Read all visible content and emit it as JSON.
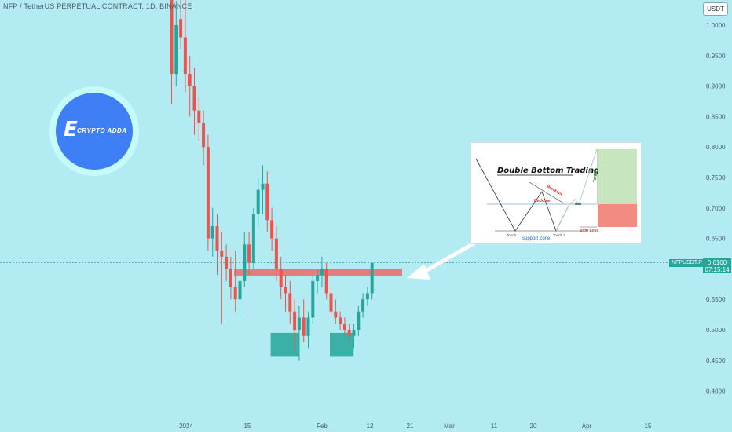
{
  "header": {
    "title": "NFP / TetherUS PERPETUAL CONTRACT, 1D, BINANCE",
    "currency": "USDT"
  },
  "price_tag": {
    "symbol": "NFPUSDT.P",
    "price": "0.6100",
    "countdown": "07:15:14"
  },
  "logo": {
    "brand_text": "CRYPTO ADDA"
  },
  "colors": {
    "background": "#b2ebf2",
    "up": "#26a69a",
    "down": "#ef5350",
    "resistance_zone": "#e57373",
    "support_zone": "#26a69a"
  },
  "chart_data": {
    "type": "candlestick",
    "y_axis_ticks": [
      "1.0000",
      "0.9500",
      "0.9000",
      "0.8500",
      "0.8000",
      "0.7500",
      "0.7000",
      "0.6500",
      "0.6000",
      "0.5500",
      "0.5000",
      "0.4500",
      "0.4000"
    ],
    "x_axis_ticks": [
      "2024",
      "15",
      "Feb",
      "12",
      "21",
      "Mar",
      "11",
      "20",
      "Apr",
      "15"
    ],
    "ylim": [
      0.37,
      1.05
    ],
    "current_price": 0.61,
    "candles": [
      [
        1.06,
        1.08,
        0.87,
        0.92
      ],
      [
        0.92,
        1.04,
        0.9,
        1.0
      ],
      [
        1.01,
        1.05,
        0.96,
        0.98
      ],
      [
        0.98,
        1.06,
        0.89,
        0.92
      ],
      [
        0.92,
        0.95,
        0.85,
        0.9
      ],
      [
        0.9,
        0.93,
        0.82,
        0.86
      ],
      [
        0.86,
        0.88,
        0.81,
        0.84
      ],
      [
        0.84,
        0.86,
        0.77,
        0.8
      ],
      [
        0.8,
        0.82,
        0.63,
        0.65
      ],
      [
        0.65,
        0.7,
        0.62,
        0.67
      ],
      [
        0.67,
        0.69,
        0.59,
        0.63
      ],
      [
        0.63,
        0.66,
        0.51,
        0.62
      ],
      [
        0.62,
        0.64,
        0.58,
        0.6
      ],
      [
        0.6,
        0.62,
        0.55,
        0.57
      ],
      [
        0.57,
        0.63,
        0.53,
        0.55
      ],
      [
        0.55,
        0.59,
        0.52,
        0.58
      ],
      [
        0.58,
        0.66,
        0.57,
        0.64
      ],
      [
        0.64,
        0.66,
        0.59,
        0.61
      ],
      [
        0.61,
        0.7,
        0.6,
        0.69
      ],
      [
        0.69,
        0.75,
        0.67,
        0.73
      ],
      [
        0.73,
        0.77,
        0.69,
        0.74
      ],
      [
        0.74,
        0.76,
        0.66,
        0.68
      ],
      [
        0.68,
        0.7,
        0.63,
        0.65
      ],
      [
        0.65,
        0.67,
        0.58,
        0.6
      ],
      [
        0.6,
        0.62,
        0.55,
        0.57
      ],
      [
        0.57,
        0.59,
        0.53,
        0.56
      ],
      [
        0.56,
        0.58,
        0.51,
        0.53
      ],
      [
        0.53,
        0.55,
        0.47,
        0.5
      ],
      [
        0.5,
        0.54,
        0.45,
        0.52
      ],
      [
        0.52,
        0.55,
        0.48,
        0.49
      ],
      [
        0.49,
        0.53,
        0.47,
        0.52
      ],
      [
        0.52,
        0.59,
        0.51,
        0.58
      ],
      [
        0.58,
        0.6,
        0.56,
        0.59
      ],
      [
        0.59,
        0.62,
        0.57,
        0.6
      ],
      [
        0.6,
        0.61,
        0.55,
        0.56
      ],
      [
        0.56,
        0.57,
        0.52,
        0.53
      ],
      [
        0.53,
        0.55,
        0.51,
        0.52
      ],
      [
        0.52,
        0.53,
        0.5,
        0.51
      ],
      [
        0.51,
        0.52,
        0.49,
        0.5
      ],
      [
        0.5,
        0.51,
        0.48,
        0.49
      ],
      [
        0.49,
        0.51,
        0.47,
        0.5
      ],
      [
        0.5,
        0.54,
        0.49,
        0.53
      ],
      [
        0.53,
        0.56,
        0.52,
        0.55
      ],
      [
        0.55,
        0.57,
        0.54,
        0.56
      ],
      [
        0.56,
        0.61,
        0.55,
        0.61
      ]
    ],
    "resistance_zone": {
      "from": 0.595,
      "to": 0.607
    },
    "support_zones": [
      {
        "from_candle": 22,
        "to_candle": 27,
        "low": 0.457,
        "high": 0.495
      },
      {
        "from_candle": 35,
        "to_candle": 39,
        "low": 0.457,
        "high": 0.495
      }
    ]
  },
  "inset": {
    "title": "Double Bottom Trading",
    "neckline": "Neckline",
    "breakout": "Breakout",
    "target": "Target",
    "touch1": "Touch 1",
    "touch2": "Touch 2",
    "support_zone": "Support Zone",
    "stop_loss": "Stop Loss"
  }
}
